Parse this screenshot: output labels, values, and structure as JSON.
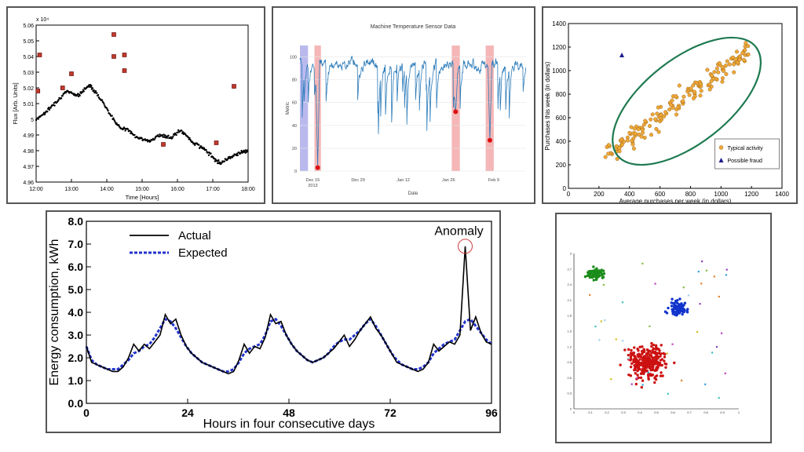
{
  "colors": {
    "black": "#000000",
    "outlier": "#c0392b",
    "sensor_line": "#2b7bb9",
    "anomaly_band": "#f4b6b6",
    "train_band": "#b9b9ee",
    "anomaly_dot": "#dd1111",
    "typical": "#f0a838",
    "fraud": "#1a1a8c",
    "ellipse": "#1e7a50",
    "expected": "#2233cc",
    "cluster_green": "#1a8c1a",
    "cluster_blue": "#1133cc",
    "cluster_red": "#cc1111"
  },
  "charts": [
    {
      "id": "flux",
      "chart_data": {
        "type": "scatter",
        "title": "",
        "xlabel": "Time [Hours]",
        "ylabel": "Flux [Arb. Units]",
        "exponent": "x 10⁴",
        "xlim": [
          12.0,
          18.0
        ],
        "ylim": [
          4.96,
          5.06
        ],
        "xticks": [
          "12:00",
          "13:00",
          "14:00",
          "15:00",
          "16:00",
          "17:00",
          "18:00"
        ],
        "yticks": [
          "4.96",
          "4.97",
          "4.98",
          "4.99",
          "5",
          "5.01",
          "5.02",
          "5.03",
          "5.04",
          "5.05",
          "5.06"
        ],
        "curve_x": [
          12.0,
          12.3,
          12.6,
          12.9,
          13.2,
          13.5,
          13.7,
          14.0,
          14.3,
          14.6,
          14.9,
          15.2,
          15.5,
          15.8,
          16.1,
          16.4,
          16.7,
          17.0,
          17.2,
          17.5,
          17.8,
          18.0
        ],
        "curve_y": [
          5.0,
          5.005,
          5.012,
          5.018,
          5.015,
          5.022,
          5.017,
          5.007,
          4.996,
          4.993,
          4.988,
          4.986,
          4.99,
          4.988,
          4.993,
          4.986,
          4.982,
          4.976,
          4.972,
          4.976,
          4.979,
          4.98
        ],
        "outliers_x": [
          12.1,
          12.05,
          12.75,
          13.0,
          14.2,
          14.2,
          14.5,
          14.5,
          15.6,
          17.1,
          17.6
        ],
        "outliers_y": [
          5.041,
          5.018,
          5.02,
          5.029,
          5.054,
          5.04,
          5.041,
          5.031,
          4.984,
          4.985,
          5.021
        ]
      }
    },
    {
      "id": "sensor",
      "chart_data": {
        "type": "line",
        "title": "Machine Temperature Sensor Data",
        "xlabel": "Date",
        "ylabel": "Metric",
        "ylim": [
          0,
          110
        ],
        "yticks": [
          "0",
          "20",
          "40",
          "60",
          "80",
          "100"
        ],
        "xtick_values": [
          4,
          18,
          32,
          46,
          60
        ],
        "xticks": [
          "Dec 15\n2013",
          "Dec 29",
          "Jan 12",
          "Jan 26",
          "Feb 9"
        ],
        "xlim": [
          0,
          70
        ],
        "train_band": [
          0,
          2.5
        ],
        "anomaly_bands": [
          [
            4.5,
            6.5
          ],
          [
            47,
            49.5
          ],
          [
            57.5,
            60
          ]
        ],
        "anomaly_points_x": [
          5.5,
          48.2,
          58.8
        ],
        "anomaly_points_y": [
          3,
          52,
          27
        ]
      }
    },
    {
      "id": "fraud",
      "chart_data": {
        "type": "scatter",
        "title": "",
        "xlabel": "Average purchases per week (in dollars)",
        "ylabel": "Purchases this week (in dollars)",
        "xlim": [
          0,
          1400
        ],
        "ylim": [
          0,
          1400
        ],
        "xticks": [
          "0",
          "200",
          "400",
          "600",
          "800",
          "1000",
          "1200",
          "1400"
        ],
        "yticks": [
          "0",
          "200",
          "400",
          "600",
          "800",
          "1000",
          "1200",
          "1400"
        ],
        "series": [
          {
            "name": "Typical activity",
            "marker": "circle"
          },
          {
            "name": "Possible fraud",
            "marker": "triangle"
          }
        ],
        "fraud_point": [
          350,
          1130
        ],
        "legend": "bottom-right"
      }
    },
    {
      "id": "energy",
      "chart_data": {
        "type": "line",
        "title": "",
        "xlabel": "Hours in four consecutive days",
        "ylabel": "Energy consumption, kWh",
        "xlim": [
          0,
          96
        ],
        "ylim": [
          0.0,
          8.0
        ],
        "xticks": [
          "0",
          "24",
          "48",
          "72",
          "96"
        ],
        "yticks": [
          "0.0",
          "1.0",
          "2.0",
          "3.0",
          "4.0",
          "5.0",
          "6.0",
          "7.0",
          "8.0"
        ],
        "annotation": "Anomaly",
        "legend": "top-left",
        "series": [
          {
            "name": "Actual",
            "values": [
              2.5,
              1.8,
              1.7,
              1.6,
              1.5,
              1.4,
              1.4,
              1.6,
              2.0,
              2.6,
              2.3,
              2.6,
              2.4,
              2.7,
              3.0,
              3.9,
              3.5,
              3.7,
              3.0,
              2.5,
              2.2,
              2.0,
              1.8,
              1.7,
              1.6,
              1.5,
              1.4,
              1.3,
              1.4,
              1.9,
              2.6,
              2.2,
              2.5,
              2.4,
              2.9,
              3.9,
              3.5,
              3.6,
              3.0,
              2.6,
              2.3,
              2.1,
              1.9,
              1.8,
              1.9,
              2.0,
              2.2,
              2.4,
              2.7,
              3.0,
              2.5,
              2.8,
              3.2,
              3.5,
              3.8,
              3.3,
              3.0,
              2.6,
              2.2,
              1.8,
              1.7,
              1.6,
              1.5,
              1.4,
              1.5,
              1.8,
              2.6,
              2.3,
              2.5,
              2.7,
              2.6,
              3.0,
              6.9,
              3.2,
              3.8,
              3.1,
              2.7,
              2.6
            ]
          },
          {
            "name": "Expected",
            "values": [
              2.5,
              1.9,
              1.7,
              1.6,
              1.5,
              1.5,
              1.5,
              1.7,
              1.9,
              2.2,
              2.3,
              2.5,
              2.6,
              2.9,
              3.3,
              3.7,
              3.6,
              3.3,
              2.9,
              2.5,
              2.2,
              2.0,
              1.8,
              1.7,
              1.6,
              1.5,
              1.4,
              1.4,
              1.5,
              1.8,
              2.2,
              2.4,
              2.5,
              2.6,
              3.0,
              3.6,
              3.7,
              3.4,
              3.0,
              2.6,
              2.3,
              2.1,
              1.9,
              1.8,
              1.9,
              2.0,
              2.2,
              2.5,
              2.7,
              2.8,
              2.8,
              3.0,
              3.2,
              3.5,
              3.7,
              3.4,
              3.0,
              2.6,
              2.2,
              1.9,
              1.7,
              1.6,
              1.5,
              1.5,
              1.6,
              1.8,
              2.2,
              2.4,
              2.6,
              2.7,
              2.8,
              3.2,
              3.6,
              3.7,
              3.4,
              3.1,
              2.8,
              2.6
            ]
          }
        ]
      }
    },
    {
      "id": "clusters",
      "chart_data": {
        "type": "scatter",
        "title": "",
        "xlim": [
          0,
          1
        ],
        "ylim": [
          0,
          3
        ],
        "xticks": [
          "0",
          "0.1",
          "0.2",
          "0.3",
          "0.4",
          "0.5",
          "0.6",
          "0.7",
          "0.8",
          "0.9",
          "1"
        ],
        "yticks": [
          "0",
          "0.3",
          "0.6",
          "0.9",
          "1.2",
          "1.5",
          "1.8",
          "2.1",
          "2.4",
          "2.7",
          "3"
        ],
        "clusters": [
          {
            "color": "cluster_green",
            "center": [
              0.13,
              2.6
            ],
            "spread": [
              0.05,
              0.12
            ],
            "count": 70
          },
          {
            "color": "cluster_blue",
            "center": [
              0.63,
              1.95
            ],
            "spread": [
              0.06,
              0.15
            ],
            "count": 80
          },
          {
            "color": "cluster_red",
            "center": [
              0.45,
              0.9
            ],
            "spread": [
              0.13,
              0.35
            ],
            "count": 280
          }
        ]
      }
    }
  ]
}
